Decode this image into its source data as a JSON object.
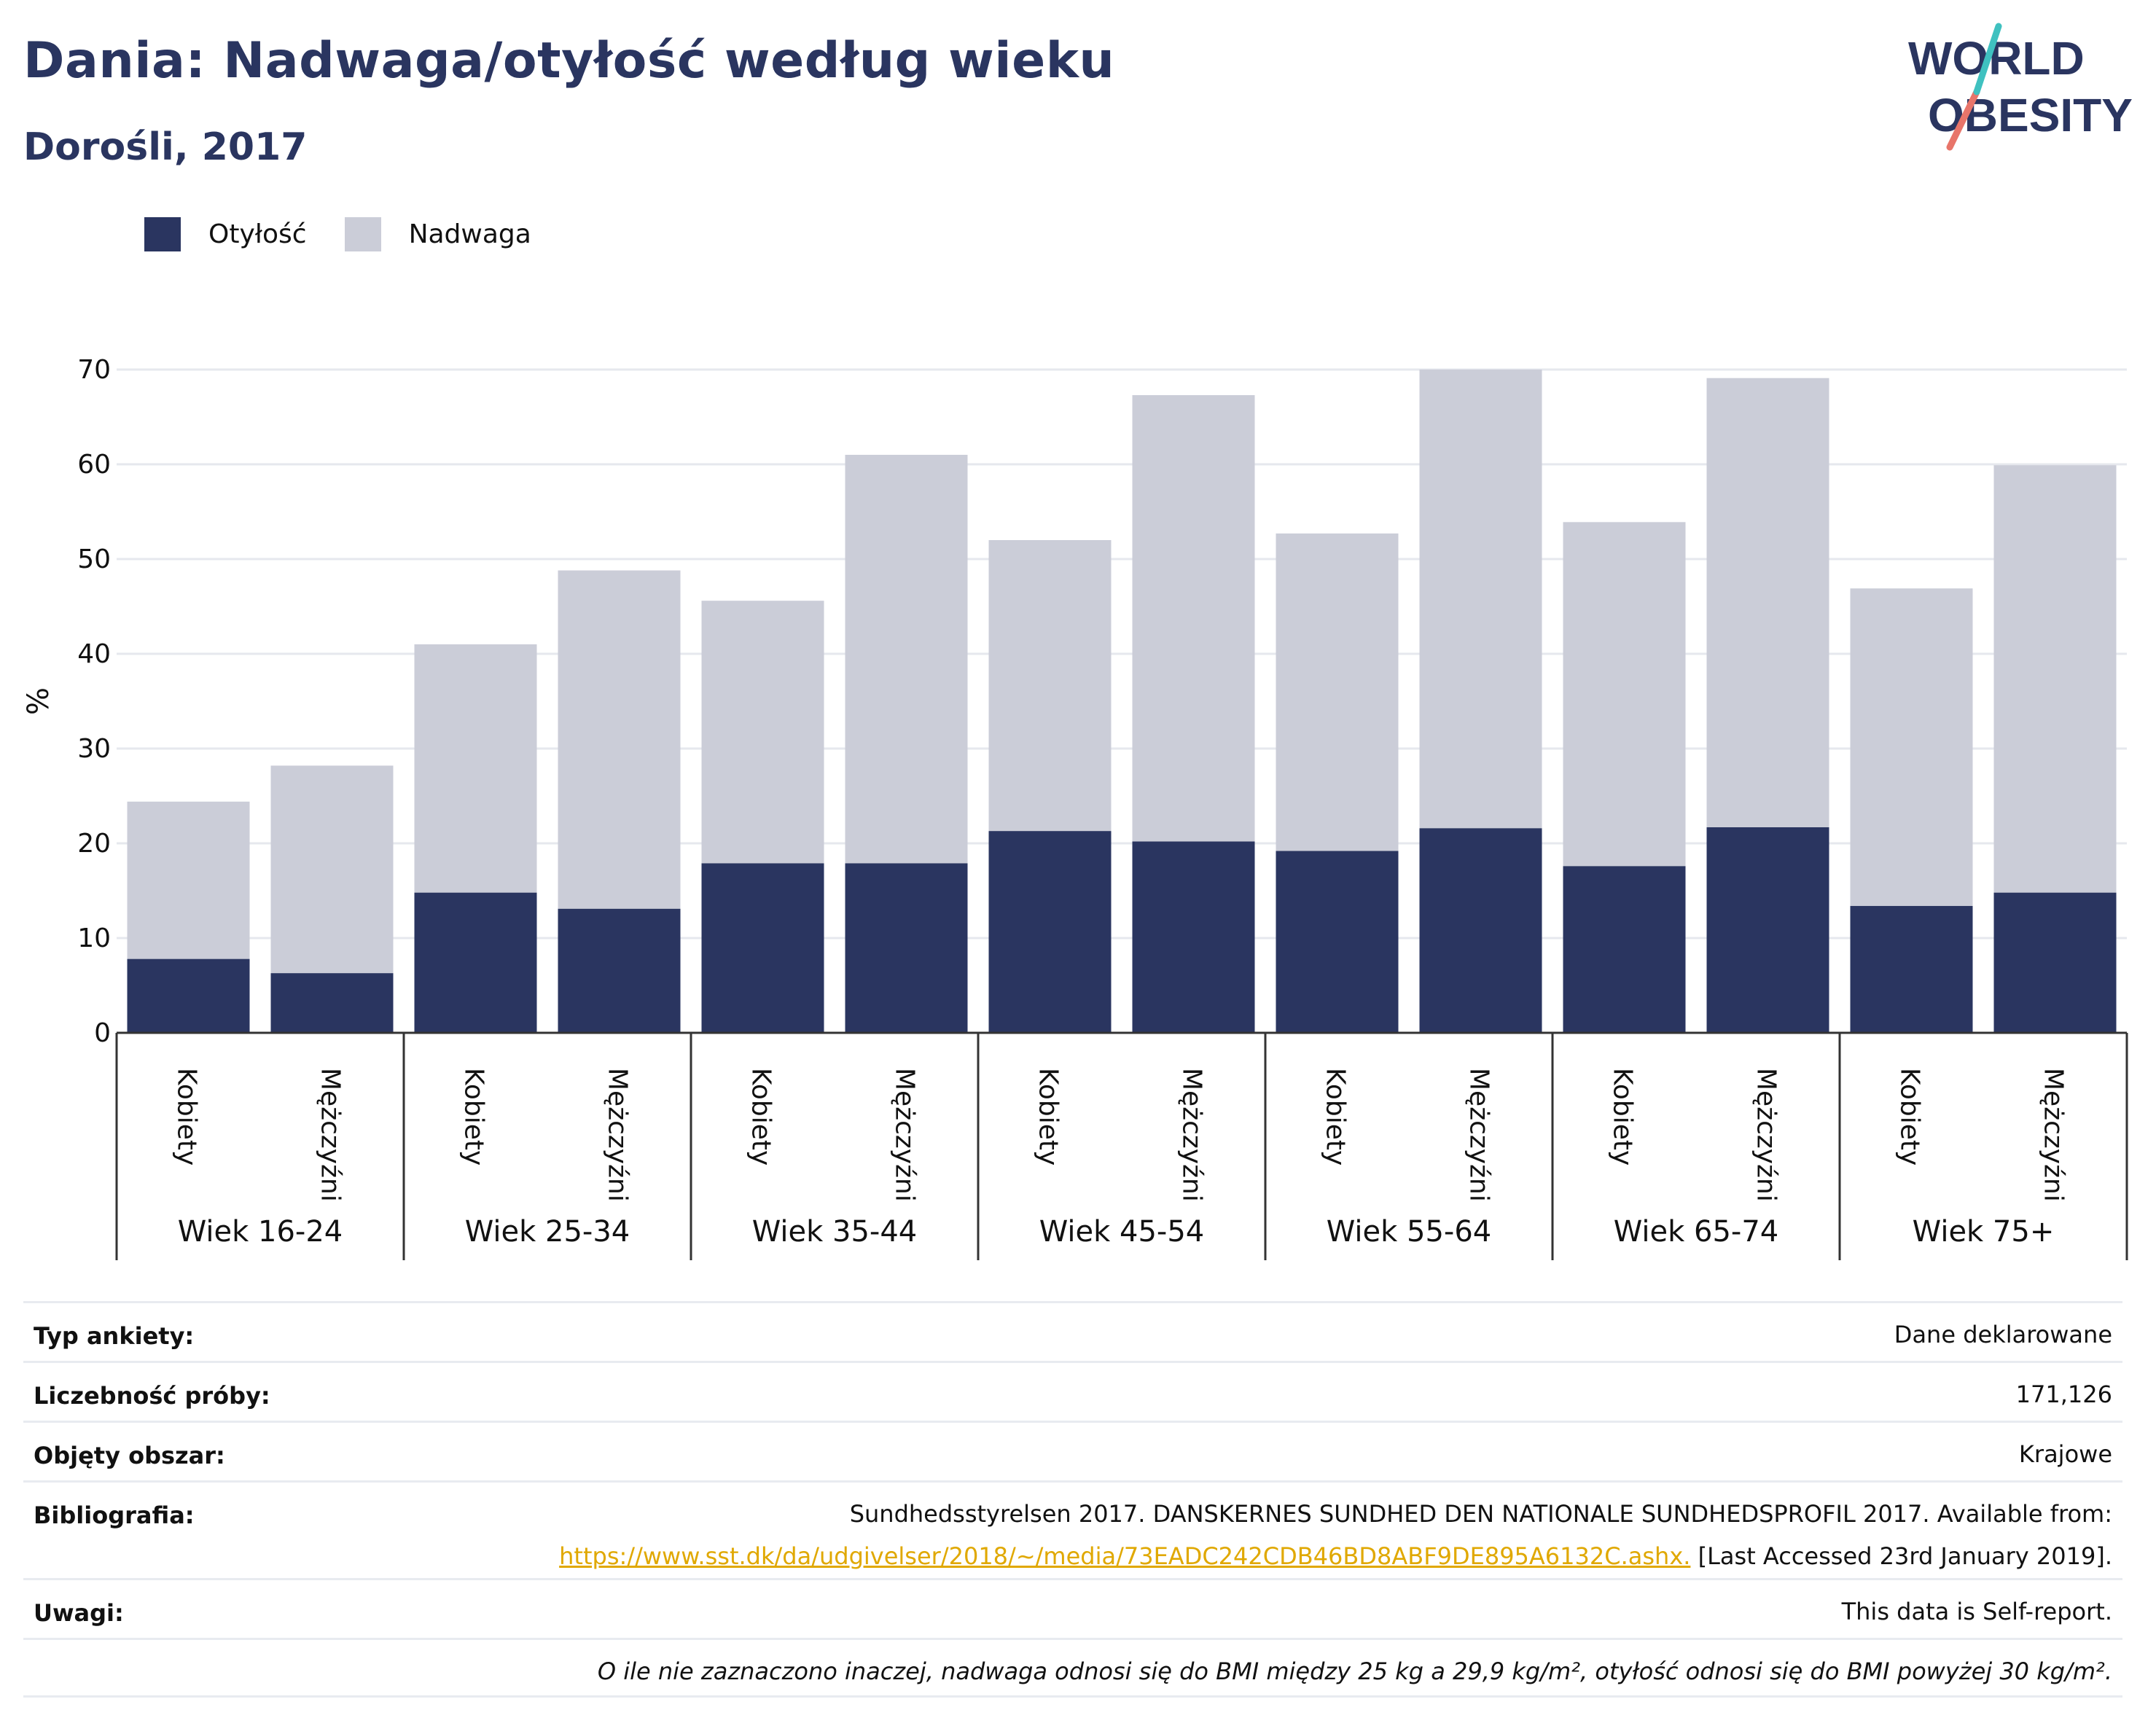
{
  "header": {
    "title": "Dania: Nadwaga/otyłość według wieku",
    "subtitle": "Dorośli, 2017",
    "logo_line1": "WORLD",
    "logo_line2": "OBESITY"
  },
  "legend": [
    {
      "label": "Otyłość",
      "color": "#2a3560"
    },
    {
      "label": "Nadwaga",
      "color": "#cbcdd8"
    }
  ],
  "chart_data": {
    "type": "bar",
    "stacked": true,
    "ylabel": "%",
    "ylim": [
      0,
      70
    ],
    "yticks": [
      0,
      10,
      20,
      30,
      40,
      50,
      60,
      70
    ],
    "grid": true,
    "legend_position": "top-left",
    "groups": [
      "Wiek 16-24",
      "Wiek 25-34",
      "Wiek 35-44",
      "Wiek 45-54",
      "Wiek 55-64",
      "Wiek 65-74",
      "Wiek 75+"
    ],
    "subcategories": [
      "Kobiety",
      "Mężczyźni"
    ],
    "series": [
      {
        "name": "Otyłość",
        "color": "#2a3560",
        "values": [
          7.8,
          6.3,
          14.8,
          13.1,
          17.9,
          17.9,
          21.3,
          20.2,
          19.2,
          21.6,
          17.6,
          21.7,
          13.4,
          14.8
        ]
      },
      {
        "name": "Nadwaga",
        "color": "#cbcdd8",
        "values": [
          16.6,
          21.9,
          26.2,
          35.7,
          27.7,
          43.1,
          30.7,
          47.1,
          33.5,
          48.4,
          36.3,
          47.4,
          33.5,
          45.1
        ]
      }
    ]
  },
  "info": {
    "survey_type_label": "Typ ankiety:",
    "survey_type_value": "Dane deklarowane",
    "sample_size_label": "Liczebność próby:",
    "sample_size_value": "171,126",
    "area_label": "Objęty obszar:",
    "area_value": "Krajowe",
    "bibliography_label": "Bibliografia:",
    "bibliography_text": "Sundhedsstyrelsen 2017. DANSKERNES SUNDHED DEN NATIONALE SUNDHEDSPROFIL 2017. Available from:",
    "bibliography_link": "https://www.sst.dk/da/udgivelser/2018/~/media/73EADC242CDB46BD8ABF9DE895A6132C.ashx.",
    "bibliography_accessed": "[Last Accessed 23rd January 2019].",
    "notes_label": "Uwagi:",
    "notes_value": "This data is Self-report.",
    "footnote": "O ile nie zaznaczono inaczej, nadwaga odnosi się do BMI między 25 kg a 29,9 kg/m², otyłość odnosi się do BMI powyżej 30 kg/m²."
  }
}
